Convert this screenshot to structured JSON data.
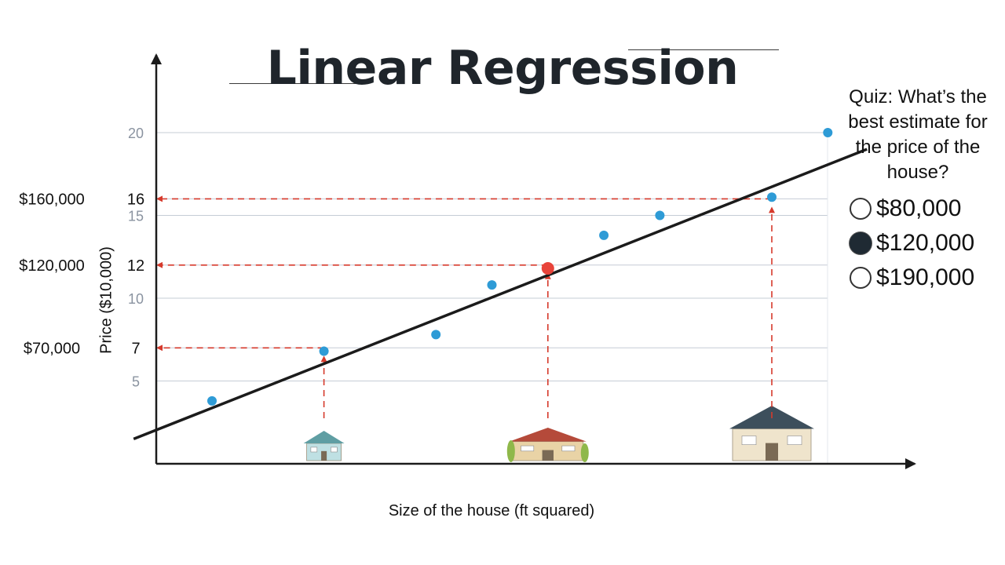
{
  "slide": {
    "title": "Linear Regression",
    "quiz": {
      "question": "Quiz: What’s the best estimate for the price of the house?",
      "options": [
        {
          "label": "$80,000",
          "selected": false
        },
        {
          "label": "$120,000",
          "selected": true
        },
        {
          "label": "$190,000",
          "selected": false
        }
      ]
    }
  },
  "chart_data": {
    "type": "scatter",
    "title": "Linear Regression",
    "xlabel": "Size of the house (ft squared)",
    "ylabel": "Price ($10,000)",
    "ylim": [
      0,
      20
    ],
    "grid": true,
    "yticks": [
      5,
      7,
      10,
      12,
      15,
      16,
      20
    ],
    "price_labels": [
      {
        "y": 16,
        "label": "$160,000"
      },
      {
        "y": 12,
        "label": "$120,000"
      },
      {
        "y": 7,
        "label": "$70,000"
      }
    ],
    "points": [
      {
        "x": 1.0,
        "y": 3.8
      },
      {
        "x": 3.0,
        "y": 6.8
      },
      {
        "x": 5.0,
        "y": 7.8
      },
      {
        "x": 6.0,
        "y": 10.8
      },
      {
        "x": 8.0,
        "y": 13.8
      },
      {
        "x": 9.0,
        "y": 15.0
      },
      {
        "x": 11.0,
        "y": 16.1
      },
      {
        "x": 12.0,
        "y": 20.0
      }
    ],
    "highlight_point": {
      "x": 7.0,
      "y": 11.8
    },
    "regression_line": {
      "x": [
        -0.4,
        12.7
      ],
      "y": [
        1.5,
        19.0
      ]
    },
    "projections": [
      {
        "x": 3.0,
        "y": 7
      },
      {
        "x": 7.0,
        "y": 12
      },
      {
        "x": 11.0,
        "y": 16
      }
    ],
    "house_icons": [
      {
        "x": 3.0,
        "size": "small"
      },
      {
        "x": 7.0,
        "size": "medium"
      },
      {
        "x": 11.0,
        "size": "large"
      }
    ],
    "colors": {
      "points": "#2e9bd6",
      "highlight": "#e8433a",
      "line": "#1b1b1b",
      "projection": "#d63a2c",
      "grid": "#c5ccd6",
      "tick": "#8a93a0"
    }
  }
}
